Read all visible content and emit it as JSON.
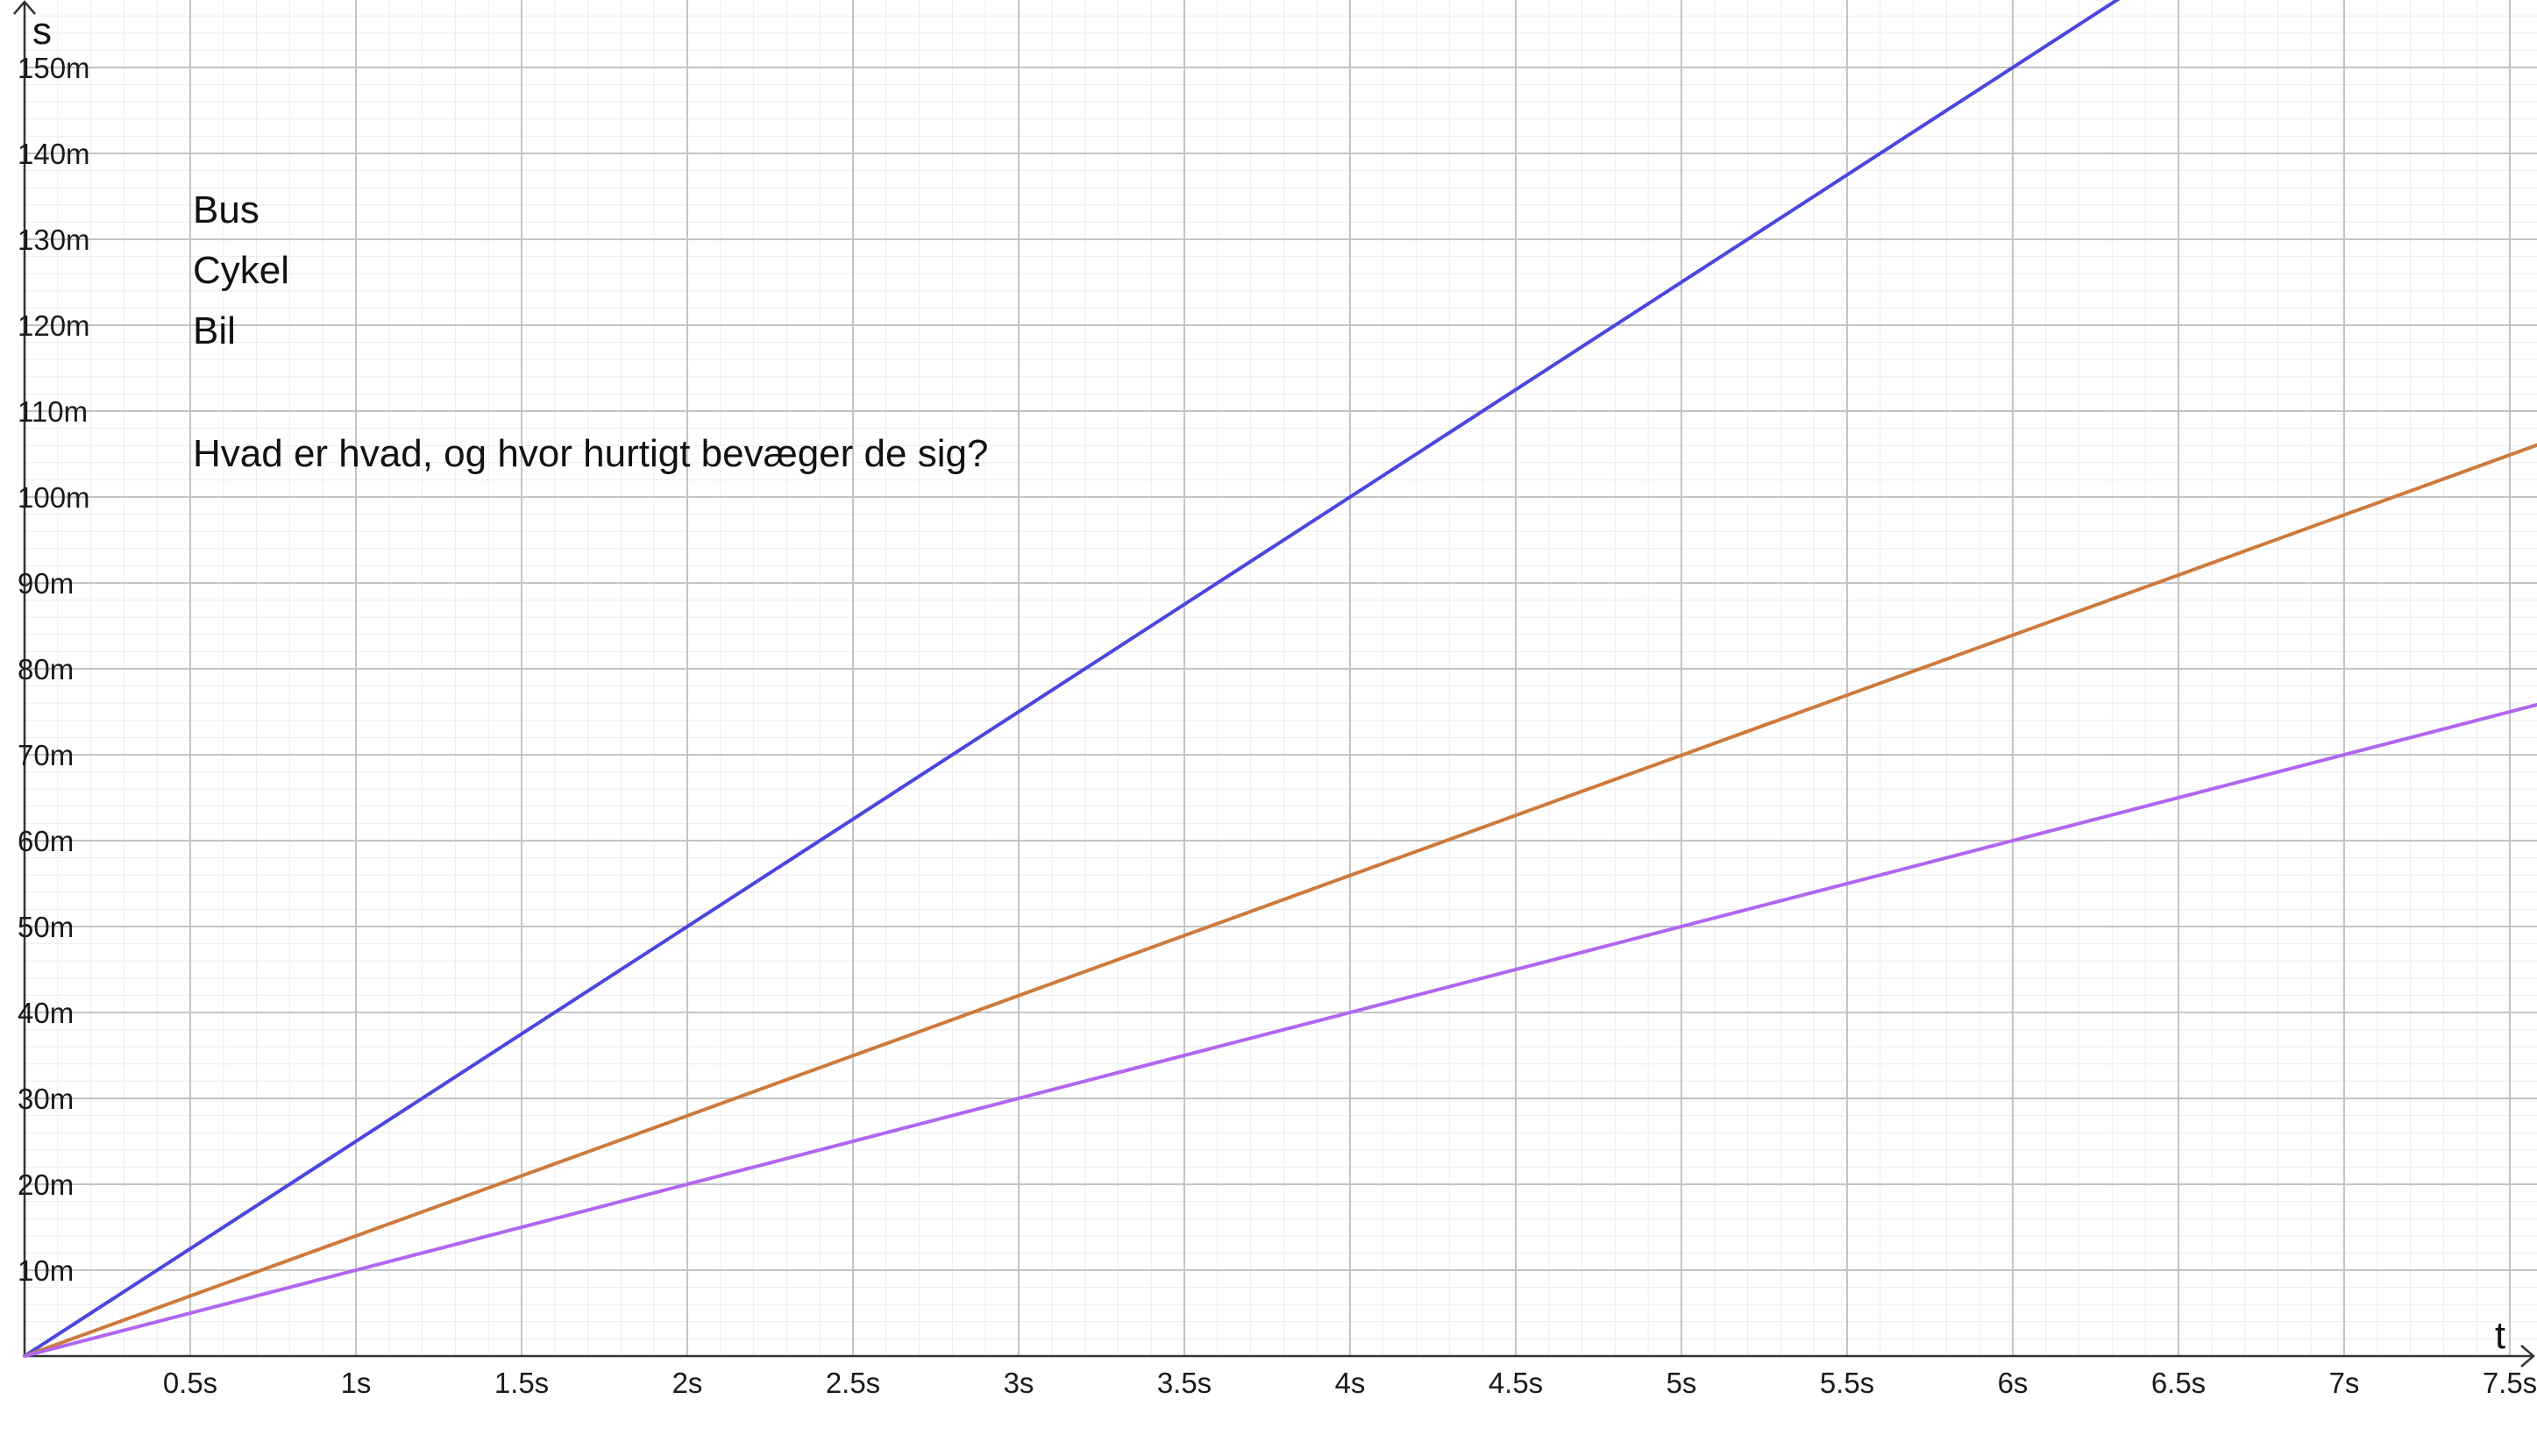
{
  "chart_data": {
    "type": "line",
    "xlabel": "t",
    "ylabel": "s",
    "xlim": [
      0,
      7.5
    ],
    "ylim": [
      0,
      150
    ],
    "x_ticks": [
      {
        "value": 0.5,
        "label": "0.5s"
      },
      {
        "value": 1,
        "label": "1s"
      },
      {
        "value": 1.5,
        "label": "1.5s"
      },
      {
        "value": 2,
        "label": "2s"
      },
      {
        "value": 2.5,
        "label": "2.5s"
      },
      {
        "value": 3,
        "label": "3s"
      },
      {
        "value": 3.5,
        "label": "3.5s"
      },
      {
        "value": 4,
        "label": "4s"
      },
      {
        "value": 4.5,
        "label": "4.5s"
      },
      {
        "value": 5,
        "label": "5s"
      },
      {
        "value": 5.5,
        "label": "5.5s"
      },
      {
        "value": 6,
        "label": "6s"
      },
      {
        "value": 6.5,
        "label": "6.5s"
      },
      {
        "value": 7,
        "label": "7s"
      },
      {
        "value": 7.5,
        "label": "7.5s"
      }
    ],
    "y_ticks": [
      {
        "value": 10,
        "label": "10m"
      },
      {
        "value": 20,
        "label": "20m"
      },
      {
        "value": 30,
        "label": "30m"
      },
      {
        "value": 40,
        "label": "40m"
      },
      {
        "value": 50,
        "label": "50m"
      },
      {
        "value": 60,
        "label": "60m"
      },
      {
        "value": 70,
        "label": "70m"
      },
      {
        "value": 80,
        "label": "80m"
      },
      {
        "value": 90,
        "label": "90m"
      },
      {
        "value": 100,
        "label": "100m"
      },
      {
        "value": 110,
        "label": "110m"
      },
      {
        "value": 120,
        "label": "120m"
      },
      {
        "value": 130,
        "label": "130m"
      },
      {
        "value": 140,
        "label": "140m"
      },
      {
        "value": 150,
        "label": "150m"
      }
    ],
    "grid": true,
    "series": [
      {
        "color": "#4b46e0",
        "x": [
          0,
          6.32
        ],
        "y": [
          0,
          158
        ]
      },
      {
        "color": "#cd7a3c",
        "x": [
          0,
          7.65
        ],
        "y": [
          0,
          107
        ]
      },
      {
        "color": "#b066f0",
        "x": [
          0,
          7.65
        ],
        "y": [
          0,
          76.5
        ]
      }
    ],
    "annotations": [
      "Bus",
      "Cykel",
      "Bil",
      "Hvad er hvad, og hvor hurtigt bevæger de sig?"
    ]
  }
}
